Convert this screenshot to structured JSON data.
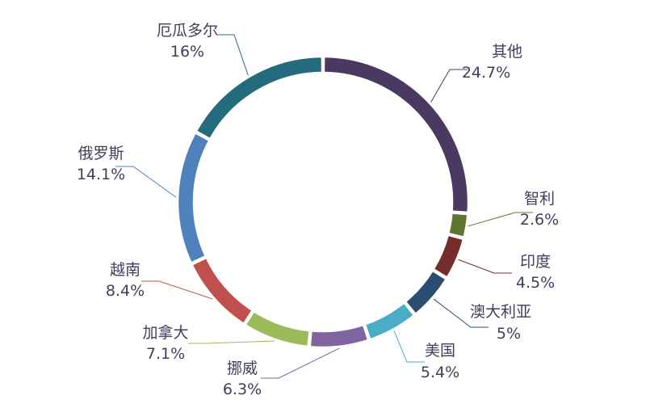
{
  "chart_data": {
    "type": "pie",
    "variant": "donut",
    "legend": "none",
    "slices": [
      {
        "name": "其他",
        "value": 24.7,
        "pct_label": "24.7%",
        "color": "#4b3a63"
      },
      {
        "name": "智利",
        "value": 2.6,
        "pct_label": "2.6%",
        "color": "#5e7632"
      },
      {
        "name": "印度",
        "value": 4.5,
        "pct_label": "4.5%",
        "color": "#772c2c"
      },
      {
        "name": "澳大利亚",
        "value": 5,
        "pct_label": "5%",
        "color": "#2d4e73"
      },
      {
        "name": "美国",
        "value": 5.4,
        "pct_label": "5.4%",
        "color": "#f79646"
      },
      {
        "name": "挪威",
        "value": 6.3,
        "pct_label": "6.3%",
        "color": "#4bacc6"
      },
      {
        "name": "加拿大",
        "value": 7.1,
        "pct_label": "7.1%",
        "color": "#8064a2"
      },
      {
        "name": "越南",
        "value": 8.4,
        "pct_label": "8.4%",
        "color": "#9bbb59"
      },
      {
        "name": "俄罗斯",
        "value": 14.1,
        "pct_label": "14.1%",
        "color": "#c0504d"
      },
      {
        "name": "厄瓜多尔",
        "value": 16,
        "pct_label": "16%",
        "color": "#4f81bd"
      }
    ],
    "leader_colors": {
      "其他": "#4b3a63",
      "智利": "#5e7632",
      "印度": "#772c2c",
      "澳大利亚": "#2d4e73",
      "美国": "#f79646",
      "挪威": "#8064a2",
      "加拿大": "#9bbb59",
      "越南": "#c0504d",
      "俄罗斯": "#4f81bd",
      "厄瓜多尔": "#2a6b7d"
    },
    "last_slice_color": "#236b7d"
  }
}
